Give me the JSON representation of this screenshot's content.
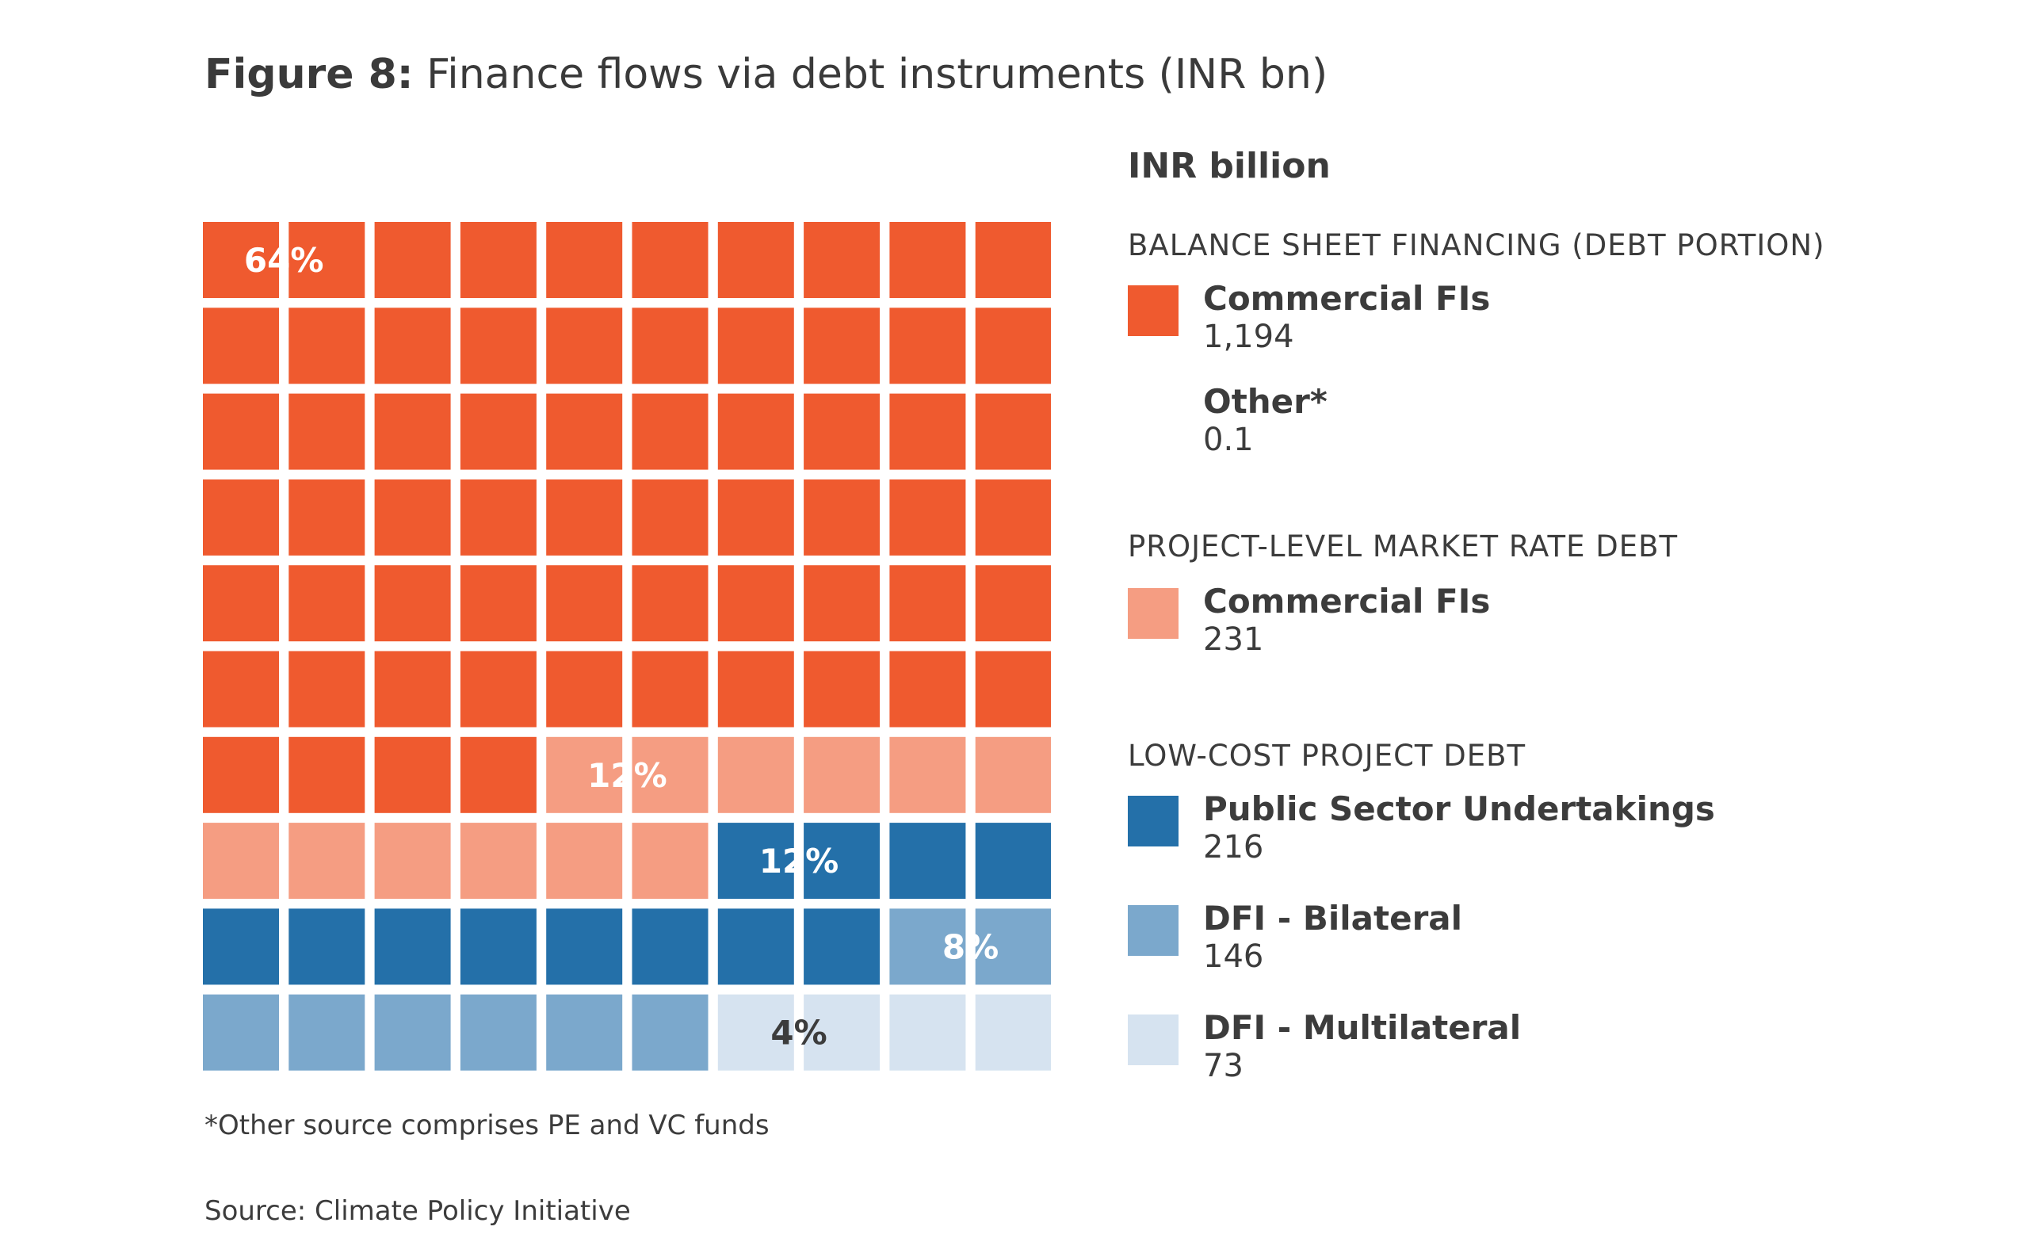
{
  "title": {
    "prefix": "Figure 8:",
    "text": "Finance flows via debt instruments (INR bn)"
  },
  "unit_label": "INR billion",
  "footnote": "*Other source comprises PE and VC funds",
  "source": "Source: Climate Policy Initiative",
  "legend": {
    "groups": [
      {
        "title": "BALANCE SHEET FINANCING (DEBT PORTION)",
        "entries": [
          {
            "label": "Commercial FIs",
            "value": "1,194",
            "color": "#ef5a2f",
            "swatch": true
          },
          {
            "label": "Other*",
            "value": "0.1",
            "color": "",
            "swatch": false
          }
        ]
      },
      {
        "title": "PROJECT-LEVEL MARKET RATE DEBT",
        "entries": [
          {
            "label": "Commercial FIs",
            "value": "231",
            "color": "#f59d82",
            "swatch": true
          }
        ]
      },
      {
        "title": "LOW-COST PROJECT DEBT",
        "entries": [
          {
            "label": "Public Sector Undertakings",
            "value": "216",
            "color": "#2470a9",
            "swatch": true
          },
          {
            "label": "DFI - Bilateral",
            "value": "146",
            "color": "#7ba8cc",
            "swatch": true
          },
          {
            "label": "DFI - Multilateral",
            "value": "73",
            "color": "#d6e3f0",
            "swatch": true
          }
        ]
      }
    ]
  },
  "chart_data": {
    "type": "waffle",
    "grid": {
      "rows": 10,
      "cols": 10
    },
    "order": "row-major",
    "segments": [
      {
        "name": "Balance sheet - Commercial FIs",
        "squares": 64,
        "label": "64%",
        "color": "#ef5a2f",
        "label_color": "#ffffff"
      },
      {
        "name": "Project-level - Commercial FIs",
        "squares": 12,
        "label": "12%",
        "color": "#f59d82",
        "label_color": "#ffffff"
      },
      {
        "name": "Public Sector Undertakings",
        "squares": 12,
        "label": "12%",
        "color": "#2470a9",
        "label_color": "#ffffff"
      },
      {
        "name": "DFI - Bilateral",
        "squares": 8,
        "label": "8%",
        "color": "#7ba8cc",
        "label_color": "#ffffff"
      },
      {
        "name": "DFI - Multilateral",
        "squares": 4,
        "label": "4%",
        "color": "#d6e3f0",
        "label_color": "#3c3c3c"
      }
    ]
  }
}
